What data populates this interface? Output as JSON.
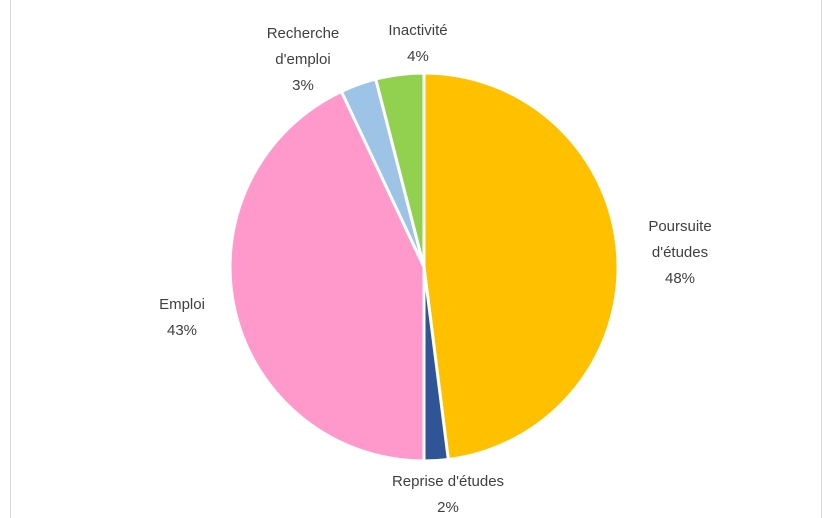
{
  "chart_data": {
    "type": "pie",
    "categories": [
      "Poursuite d'études",
      "Reprise d'études",
      "Emploi",
      "Recherche d'emploi",
      "Inactivité"
    ],
    "values": [
      48,
      2,
      43,
      3,
      4
    ],
    "value_labels": [
      "48%",
      "2%",
      "43%",
      "3%",
      "4%"
    ],
    "colors": [
      "#ffc000",
      "#2f5597",
      "#ff99cc",
      "#9dc3e6",
      "#92d050"
    ]
  }
}
